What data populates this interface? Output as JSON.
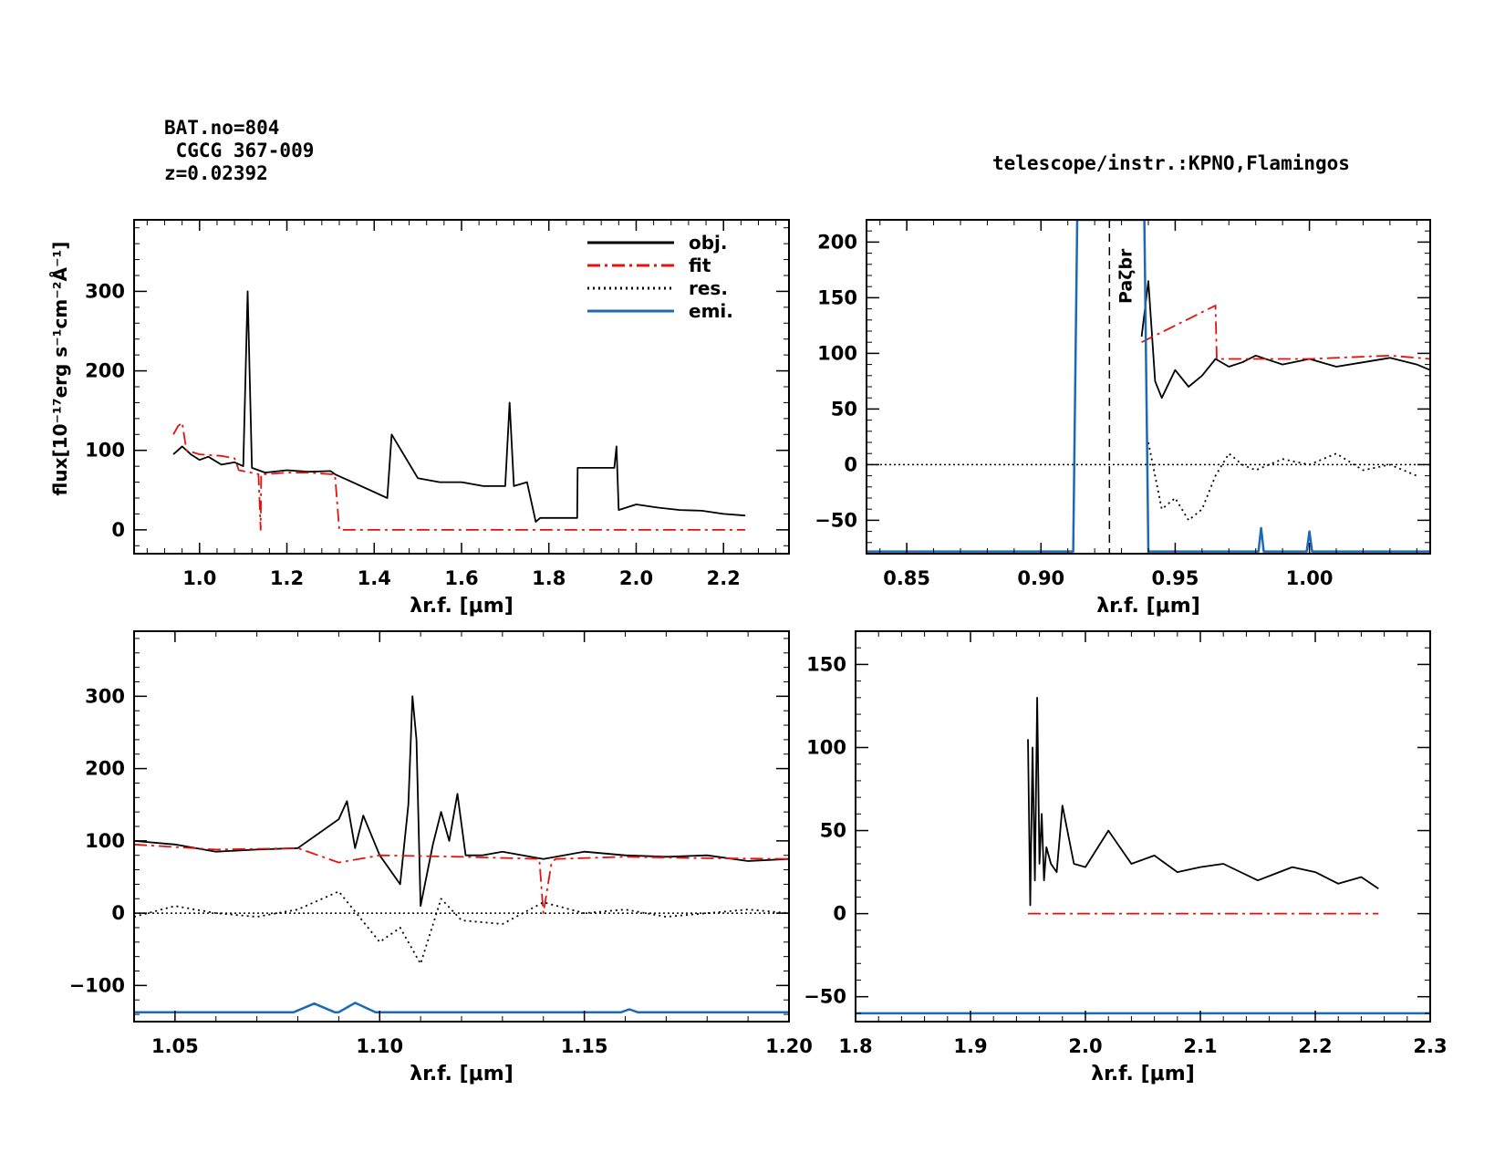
{
  "header": {
    "bat_no": "BAT.no=804",
    "galaxy": " CGCG 367-009",
    "redshift": "z=0.02392",
    "telescope": "telescope/instr.:KPNO,Flamingos"
  },
  "colors": {
    "obj": "#000000",
    "fit": "#e8100c",
    "res": "#000000",
    "emi": "#1c6ab4"
  },
  "chart_data": [
    {
      "id": "full",
      "type": "line",
      "xlabel": "λr.f. [μm]",
      "ylabel": "flux[10⁻¹⁷erg s⁻¹cm⁻²Å⁻¹]",
      "xlim": [
        0.85,
        2.35
      ],
      "ylim": [
        -30,
        390
      ],
      "xticks": [
        1.0,
        1.2,
        1.4,
        1.6,
        1.8,
        2.0,
        2.2
      ],
      "xtick_labels": [
        "1.0",
        "1.2",
        "1.4",
        "1.6",
        "1.8",
        "2.0",
        "2.2"
      ],
      "yticks": [
        0,
        100,
        200,
        300
      ],
      "ytick_labels": [
        "0",
        "100",
        "200",
        "300"
      ],
      "legend": {
        "position": "top-right",
        "entries": [
          "obj.",
          "fit",
          "res.",
          "emi."
        ]
      },
      "series": [
        {
          "name": "obj.",
          "style": "solid",
          "color": "#000000",
          "x": [
            0.94,
            0.96,
            0.98,
            1.0,
            1.02,
            1.05,
            1.08,
            1.1,
            1.11,
            1.12,
            1.15,
            1.2,
            1.25,
            1.3,
            1.31,
            1.43,
            1.44,
            1.5,
            1.55,
            1.6,
            1.65,
            1.7,
            1.71,
            1.72,
            1.75,
            1.77,
            1.78,
            1.865,
            1.866,
            1.95,
            1.955,
            1.96,
            2.0,
            2.05,
            2.1,
            2.15,
            2.2,
            2.25
          ],
          "y": [
            95,
            105,
            95,
            88,
            92,
            82,
            85,
            80,
            300,
            78,
            72,
            75,
            73,
            74,
            70,
            40,
            120,
            65,
            60,
            60,
            55,
            55,
            160,
            55,
            60,
            10,
            15,
            15,
            78,
            78,
            105,
            25,
            32,
            28,
            25,
            24,
            20,
            18
          ]
        },
        {
          "name": "fit",
          "style": "dashdot",
          "color": "#e8100c",
          "x": [
            0.94,
            0.95,
            0.96,
            0.97,
            1.0,
            1.05,
            1.08,
            1.09,
            1.135,
            1.14,
            1.141,
            1.15,
            1.2,
            1.25,
            1.3,
            1.31,
            1.32,
            1.33,
            1.6,
            1.9,
            2.25
          ],
          "y": [
            120,
            130,
            135,
            100,
            95,
            93,
            90,
            75,
            70,
            0,
            70,
            70,
            72,
            72,
            70,
            70,
            0,
            0,
            0,
            0,
            0
          ]
        }
      ]
    },
    {
      "id": "pa-zeta",
      "type": "line",
      "xlabel": "λr.f. [μm]",
      "xlim": [
        0.835,
        1.045
      ],
      "ylim": [
        -80,
        220
      ],
      "xticks": [
        0.85,
        0.9,
        0.95,
        1.0
      ],
      "xtick_labels": [
        "0.85",
        "0.90",
        "0.95",
        "1.00"
      ],
      "yticks": [
        -50,
        0,
        50,
        100,
        150,
        200
      ],
      "ytick_labels": [
        "−50",
        "0",
        "50",
        "100",
        "150",
        "200"
      ],
      "annotations": [
        {
          "text": "Paζbr",
          "x": 0.9255
        }
      ],
      "series": [
        {
          "name": "obj.",
          "style": "solid",
          "color": "#000000",
          "x": [
            0.9375,
            0.94,
            0.9425,
            0.945,
            0.95,
            0.955,
            0.96,
            0.965,
            0.97,
            0.975,
            0.98,
            0.99,
            1.0,
            1.01,
            1.02,
            1.03,
            1.04,
            1.045
          ],
          "y": [
            115,
            165,
            75,
            60,
            85,
            70,
            80,
            95,
            88,
            92,
            98,
            90,
            95,
            88,
            92,
            96,
            90,
            85
          ]
        },
        {
          "name": "fit",
          "style": "dashdot",
          "color": "#e8100c",
          "x": [
            0.9375,
            0.965,
            0.9655,
            1.0,
            1.03,
            1.045
          ],
          "y": [
            110,
            143,
            95,
            95,
            98,
            95
          ]
        },
        {
          "name": "res.",
          "style": "dotted",
          "color": "#000000",
          "x": [
            0.94,
            0.945,
            0.95,
            0.955,
            0.96,
            0.965,
            0.97,
            0.975,
            0.98,
            0.99,
            1.0,
            1.01,
            1.02,
            1.03,
            1.04
          ],
          "y": [
            20,
            -40,
            -30,
            -50,
            -40,
            -10,
            10,
            0,
            -5,
            5,
            0,
            10,
            -5,
            0,
            -10
          ]
        },
        {
          "name": "emi.",
          "style": "solid",
          "color": "#1c6ab4",
          "x": [
            0.835,
            0.912,
            0.9135,
            0.915,
            0.9365,
            0.9385,
            0.94,
            0.981,
            0.982,
            0.983,
            0.999,
            1.0,
            1.001,
            1.045
          ],
          "y": [
            -78,
            -78,
            220,
            220,
            220,
            220,
            -78,
            -78,
            -57,
            -78,
            -78,
            -60,
            -78,
            -78
          ]
        }
      ]
    },
    {
      "id": "zoom-1.1",
      "type": "line",
      "xlabel": "λr.f. [μm]",
      "xlim": [
        1.04,
        1.2
      ],
      "ylim": [
        -150,
        390
      ],
      "xticks": [
        1.05,
        1.1,
        1.15,
        1.2
      ],
      "xtick_labels": [
        "1.05",
        "1.10",
        "1.15",
        "1.20"
      ],
      "yticks": [
        -100,
        0,
        100,
        200,
        300
      ],
      "ytick_labels": [
        "−100",
        "0",
        "100",
        "200",
        "300"
      ],
      "series": [
        {
          "name": "obj.",
          "style": "solid",
          "color": "#000000",
          "x": [
            1.04,
            1.05,
            1.06,
            1.07,
            1.08,
            1.09,
            1.092,
            1.094,
            1.096,
            1.1,
            1.105,
            1.107,
            1.108,
            1.109,
            1.11,
            1.113,
            1.115,
            1.117,
            1.119,
            1.121,
            1.125,
            1.13,
            1.14,
            1.15,
            1.16,
            1.17,
            1.18,
            1.19,
            1.2
          ],
          "y": [
            100,
            95,
            85,
            88,
            90,
            130,
            155,
            90,
            135,
            80,
            40,
            150,
            300,
            240,
            10,
            95,
            140,
            100,
            165,
            80,
            80,
            85,
            75,
            85,
            80,
            78,
            80,
            72,
            75
          ]
        },
        {
          "name": "fit",
          "style": "dashdot",
          "color": "#e8100c",
          "x": [
            1.04,
            1.06,
            1.08,
            1.09,
            1.1,
            1.12,
            1.139,
            1.14,
            1.142,
            1.143,
            1.16,
            1.18,
            1.2
          ],
          "y": [
            95,
            88,
            90,
            70,
            80,
            78,
            75,
            0,
            70,
            75,
            78,
            76,
            75
          ]
        },
        {
          "name": "res.",
          "style": "dotted",
          "color": "#000000",
          "x": [
            1.04,
            1.05,
            1.06,
            1.07,
            1.08,
            1.09,
            1.1,
            1.105,
            1.11,
            1.115,
            1.12,
            1.13,
            1.14,
            1.15,
            1.16,
            1.17,
            1.18,
            1.19,
            1.2
          ],
          "y": [
            -5,
            10,
            0,
            -5,
            5,
            30,
            -40,
            -20,
            -70,
            20,
            -10,
            -15,
            15,
            0,
            5,
            -5,
            0,
            5,
            0
          ]
        },
        {
          "name": "emi.",
          "style": "solid",
          "color": "#1c6ab4",
          "x": [
            1.04,
            1.079,
            1.084,
            1.089,
            1.09,
            1.094,
            1.099,
            1.159,
            1.161,
            1.163,
            1.2
          ],
          "y": [
            -137,
            -137,
            -125,
            -137,
            -137,
            -124,
            -137,
            -137,
            -133,
            -137,
            -137
          ]
        }
      ]
    },
    {
      "id": "k-band",
      "type": "line",
      "xlabel": "λr.f. [μm]",
      "xlim": [
        1.8,
        2.3
      ],
      "ylim": [
        -65,
        170
      ],
      "xticks": [
        1.8,
        1.9,
        2.0,
        2.1,
        2.2,
        2.3
      ],
      "xtick_labels": [
        "1.8",
        "1.9",
        "2.0",
        "2.1",
        "2.2",
        "2.3"
      ],
      "yticks": [
        -50,
        0,
        50,
        100,
        150
      ],
      "ytick_labels": [
        "−50",
        "0",
        "50",
        "100",
        "150"
      ],
      "series": [
        {
          "name": "obj.",
          "style": "solid",
          "color": "#000000",
          "x": [
            1.95,
            1.952,
            1.954,
            1.956,
            1.958,
            1.96,
            1.962,
            1.964,
            1.966,
            1.97,
            1.975,
            1.98,
            1.99,
            2.0,
            2.02,
            2.04,
            2.06,
            2.08,
            2.1,
            2.12,
            2.15,
            2.18,
            2.2,
            2.22,
            2.24,
            2.255
          ],
          "y": [
            105,
            5,
            100,
            20,
            130,
            30,
            60,
            20,
            40,
            30,
            25,
            65,
            30,
            28,
            50,
            30,
            35,
            25,
            28,
            30,
            20,
            28,
            25,
            18,
            22,
            15
          ]
        },
        {
          "name": "fit",
          "style": "dashdot",
          "color": "#e8100c",
          "x": [
            1.95,
            2.255
          ],
          "y": [
            0,
            0
          ]
        },
        {
          "name": "emi.",
          "style": "solid",
          "color": "#1c6ab4",
          "x": [
            1.8,
            2.3
          ],
          "y": [
            -60,
            -60
          ]
        }
      ]
    }
  ]
}
